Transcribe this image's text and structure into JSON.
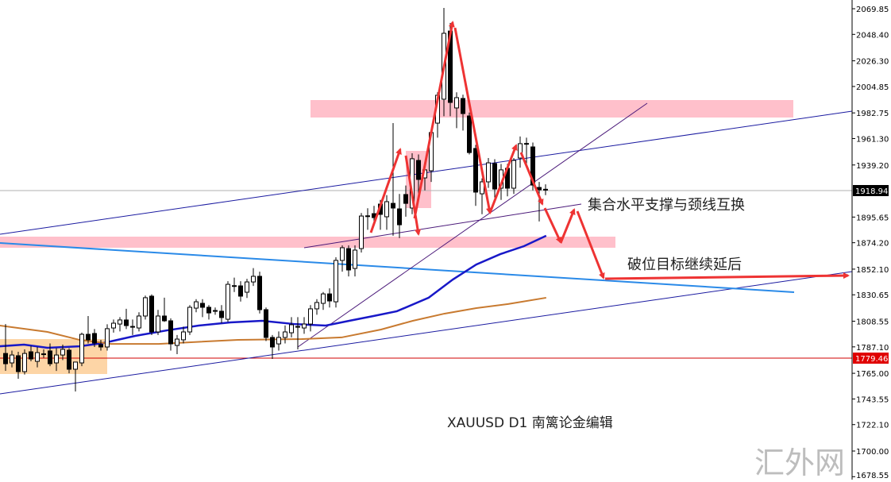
{
  "chart_data": {
    "type": "candlestick",
    "symbol": "XAUUSD",
    "timeframe": "D1",
    "caption": "XAUUSD  D1  南篱论金编辑",
    "ylim": [
      1678.55,
      2075
    ],
    "y_ticks": [
      "2069.85",
      "2048.40",
      "2026.30",
      "2004.85",
      "1982.75",
      "1961.30",
      "1939.20",
      "1895.65",
      "1874.20",
      "1852.10",
      "1830.65",
      "1808.55",
      "1787.10",
      "1765.00",
      "1743.55",
      "1722.10",
      "1700.00",
      "1678.55"
    ],
    "current_price": {
      "label": "1918.94",
      "value": 1918.94,
      "color": "#000000"
    },
    "support_line": {
      "label": "1779.46",
      "value": 1779.46,
      "color": "#e00000"
    },
    "candles_ohlc": [
      [
        1781.6,
        1806.2,
        1767.1,
        1773.0
      ],
      [
        1773.7,
        1784.0,
        1770.0,
        1780.3
      ],
      [
        1779.7,
        1783.0,
        1760.4,
        1766.4
      ],
      [
        1766.4,
        1785.0,
        1764.0,
        1781.6
      ],
      [
        1783.0,
        1788.0,
        1775.0,
        1777.0
      ],
      [
        1775.0,
        1787.0,
        1770.0,
        1782.3
      ],
      [
        1781.0,
        1785.0,
        1778.0,
        1781.3
      ],
      [
        1783.7,
        1790.0,
        1771.0,
        1773.0
      ],
      [
        1773.7,
        1786.0,
        1767.0,
        1780.3
      ],
      [
        1780.3,
        1789.0,
        1776.0,
        1785.0
      ],
      [
        1784.3,
        1786.0,
        1765.0,
        1768.4
      ],
      [
        1768.4,
        1774.4,
        1749.8,
        1774.4
      ],
      [
        1773.7,
        1799.0,
        1771.0,
        1797.6
      ],
      [
        1797.6,
        1812.9,
        1790.0,
        1793.0
      ],
      [
        1798.3,
        1802.0,
        1787.0,
        1790.3
      ],
      [
        1789.0,
        1793.0,
        1784.0,
        1787.0
      ],
      [
        1787.0,
        1806.0,
        1784.0,
        1802.3
      ],
      [
        1802.9,
        1810.0,
        1799.0,
        1806.9
      ],
      [
        1806.2,
        1812.0,
        1800.0,
        1809.6
      ],
      [
        1809.6,
        1818.9,
        1802.0,
        1804.9
      ],
      [
        1804.2,
        1810.0,
        1797.0,
        1804.0
      ],
      [
        1802.9,
        1816.0,
        1800.0,
        1812.9
      ],
      [
        1812.9,
        1830.0,
        1810.0,
        1828.2
      ],
      [
        1829.5,
        1831.0,
        1797.0,
        1799.6
      ],
      [
        1799.6,
        1818.0,
        1797.0,
        1812.9
      ],
      [
        1812.9,
        1828.2,
        1808.0,
        1808.9
      ],
      [
        1808.9,
        1811.0,
        1784.0,
        1789.6
      ],
      [
        1788.3,
        1797.0,
        1781.0,
        1793.6
      ],
      [
        1793.0,
        1804.0,
        1790.0,
        1799.6
      ],
      [
        1799.6,
        1822.0,
        1797.0,
        1820.2
      ],
      [
        1819.5,
        1827.0,
        1816.0,
        1824.8
      ],
      [
        1823.5,
        1827.0,
        1812.0,
        1820.2
      ],
      [
        1820.2,
        1822.0,
        1810.0,
        1815.5
      ],
      [
        1817.5,
        1820.0,
        1814.0,
        1817.3
      ],
      [
        1816.9,
        1822.0,
        1807.0,
        1811.6
      ],
      [
        1810.2,
        1842.0,
        1808.0,
        1839.4
      ],
      [
        1838.1,
        1845.0,
        1833.0,
        1838.3
      ],
      [
        1838.1,
        1842.0,
        1825.0,
        1829.5
      ],
      [
        1832.8,
        1844.0,
        1828.0,
        1841.4
      ],
      [
        1841.4,
        1853.0,
        1838.0,
        1846.1
      ],
      [
        1846.1,
        1850.0,
        1815.0,
        1818.2
      ],
      [
        1818.2,
        1820.0,
        1792.0,
        1795.0
      ],
      [
        1795.0,
        1797.0,
        1777.0,
        1787.0
      ],
      [
        1789.6,
        1800.0,
        1784.0,
        1795.0
      ],
      [
        1795.0,
        1805.0,
        1790.0,
        1799.6
      ],
      [
        1798.9,
        1812.0,
        1795.0,
        1805.6
      ],
      [
        1804.2,
        1812.0,
        1785.0,
        1804.0
      ],
      [
        1802.9,
        1812.0,
        1798.0,
        1806.2
      ],
      [
        1806.2,
        1822.0,
        1800.0,
        1818.9
      ],
      [
        1818.9,
        1827.0,
        1814.0,
        1824.2
      ],
      [
        1823.5,
        1833.0,
        1818.0,
        1831.4
      ],
      [
        1831.4,
        1836.0,
        1820.0,
        1825.5
      ],
      [
        1824.8,
        1862.0,
        1820.0,
        1859.4
      ],
      [
        1859.4,
        1872.0,
        1850.0,
        1870.0
      ],
      [
        1869.3,
        1872.0,
        1846.0,
        1851.4
      ],
      [
        1852.7,
        1872.0,
        1846.0,
        1868.0
      ],
      [
        1869.3,
        1899.0,
        1866.0,
        1896.5
      ],
      [
        1896.5,
        1903.0,
        1885.0,
        1896.7
      ],
      [
        1898.5,
        1905.0,
        1890.0,
        1895.2
      ],
      [
        1906.5,
        1910.0,
        1885.0,
        1897.9
      ],
      [
        1895.9,
        1914.0,
        1885.0,
        1908.5
      ],
      [
        1907.1,
        1974.2,
        1880.0,
        1903.2
      ],
      [
        1902.5,
        1915.0,
        1878.0,
        1889.2
      ],
      [
        1914.5,
        1922.0,
        1896.0,
        1907.1
      ],
      [
        1903.2,
        1949.0,
        1898.0,
        1944.4
      ],
      [
        1943.0,
        1948.0,
        1915.0,
        1927.1
      ],
      [
        1928.4,
        1940.0,
        1918.0,
        1935.1
      ],
      [
        1934.4,
        1966.3,
        1925.0,
        1966.3
      ],
      [
        1974.2,
        2000.0,
        1962.0,
        1997.5
      ],
      [
        1994.2,
        2070.5,
        1980.0,
        2049.3
      ],
      [
        2051.2,
        2058.0,
        1980.0,
        1991.5
      ],
      [
        1986.9,
        2000.0,
        1970.0,
        1995.5
      ],
      [
        1994.8,
        1998.0,
        1968.0,
        1982.2
      ],
      [
        1980.2,
        1983.0,
        1948.0,
        1949.6
      ],
      [
        1953.0,
        1956.0,
        1905.0,
        1916.5
      ],
      [
        1915.1,
        1928.0,
        1898.0,
        1925.1
      ],
      [
        1925.1,
        1945.0,
        1920.0,
        1941.0
      ],
      [
        1940.4,
        1944.0,
        1912.0,
        1919.1
      ],
      [
        1919.8,
        1940.0,
        1910.0,
        1935.1
      ],
      [
        1936.4,
        1940.0,
        1913.0,
        1919.8
      ],
      [
        1919.8,
        1945.0,
        1915.0,
        1943.0
      ],
      [
        1945.0,
        1963.0,
        1937.0,
        1957.0
      ],
      [
        1957.0,
        1962.0,
        1940.0,
        1957.2
      ],
      [
        1954.3,
        1958.0,
        1918.0,
        1922.4
      ],
      [
        1920.4,
        1925.0,
        1892.0,
        1918.5
      ],
      [
        1918.5,
        1923.0,
        1914.0,
        1918.9
      ]
    ],
    "moving_averages": [
      {
        "color": "#1818c8",
        "points": [
          [
            -0.9,
            1787.6
          ],
          [
            2.9,
            1789.0
          ],
          [
            6.6,
            1786.3
          ],
          [
            11.6,
            1787.6
          ],
          [
            15.4,
            1790.3
          ],
          [
            20.4,
            1796.3
          ],
          [
            25.4,
            1800.9
          ],
          [
            30.4,
            1804.9
          ],
          [
            35.4,
            1807.6
          ],
          [
            40.4,
            1808.9
          ],
          [
            45.4,
            1806.2
          ],
          [
            50.4,
            1804.9
          ],
          [
            54.1,
            1808.9
          ],
          [
            57.9,
            1812.9
          ],
          [
            61.6,
            1816.9
          ],
          [
            66.6,
            1828.2
          ],
          [
            70.4,
            1843.4
          ],
          [
            74.1,
            1856.0
          ],
          [
            77.9,
            1864.7
          ],
          [
            81.6,
            1871.3
          ],
          [
            85.1,
            1880.0
          ]
        ]
      },
      {
        "color": "#c87a30",
        "points": [
          [
            -0.9,
            1804.9
          ],
          [
            6.6,
            1799.6
          ],
          [
            11.6,
            1793.0
          ],
          [
            16.6,
            1789.6
          ],
          [
            24.1,
            1789.6
          ],
          [
            36.6,
            1793.0
          ],
          [
            46.6,
            1793.6
          ],
          [
            52.9,
            1795.0
          ],
          [
            59.1,
            1801.6
          ],
          [
            64.1,
            1808.9
          ],
          [
            69.1,
            1814.9
          ],
          [
            74.1,
            1819.5
          ],
          [
            79.1,
            1822.9
          ],
          [
            85.1,
            1828.2
          ]
        ]
      }
    ],
    "zone_color": "#ffc0cb",
    "range_box_color": "#fdd5a6",
    "arrow_color": "#ee3333",
    "annotations": {
      "swap": "集合水平支撑与颈线互换",
      "target": "破位目标继续延后"
    }
  },
  "watermark": "汇外网"
}
